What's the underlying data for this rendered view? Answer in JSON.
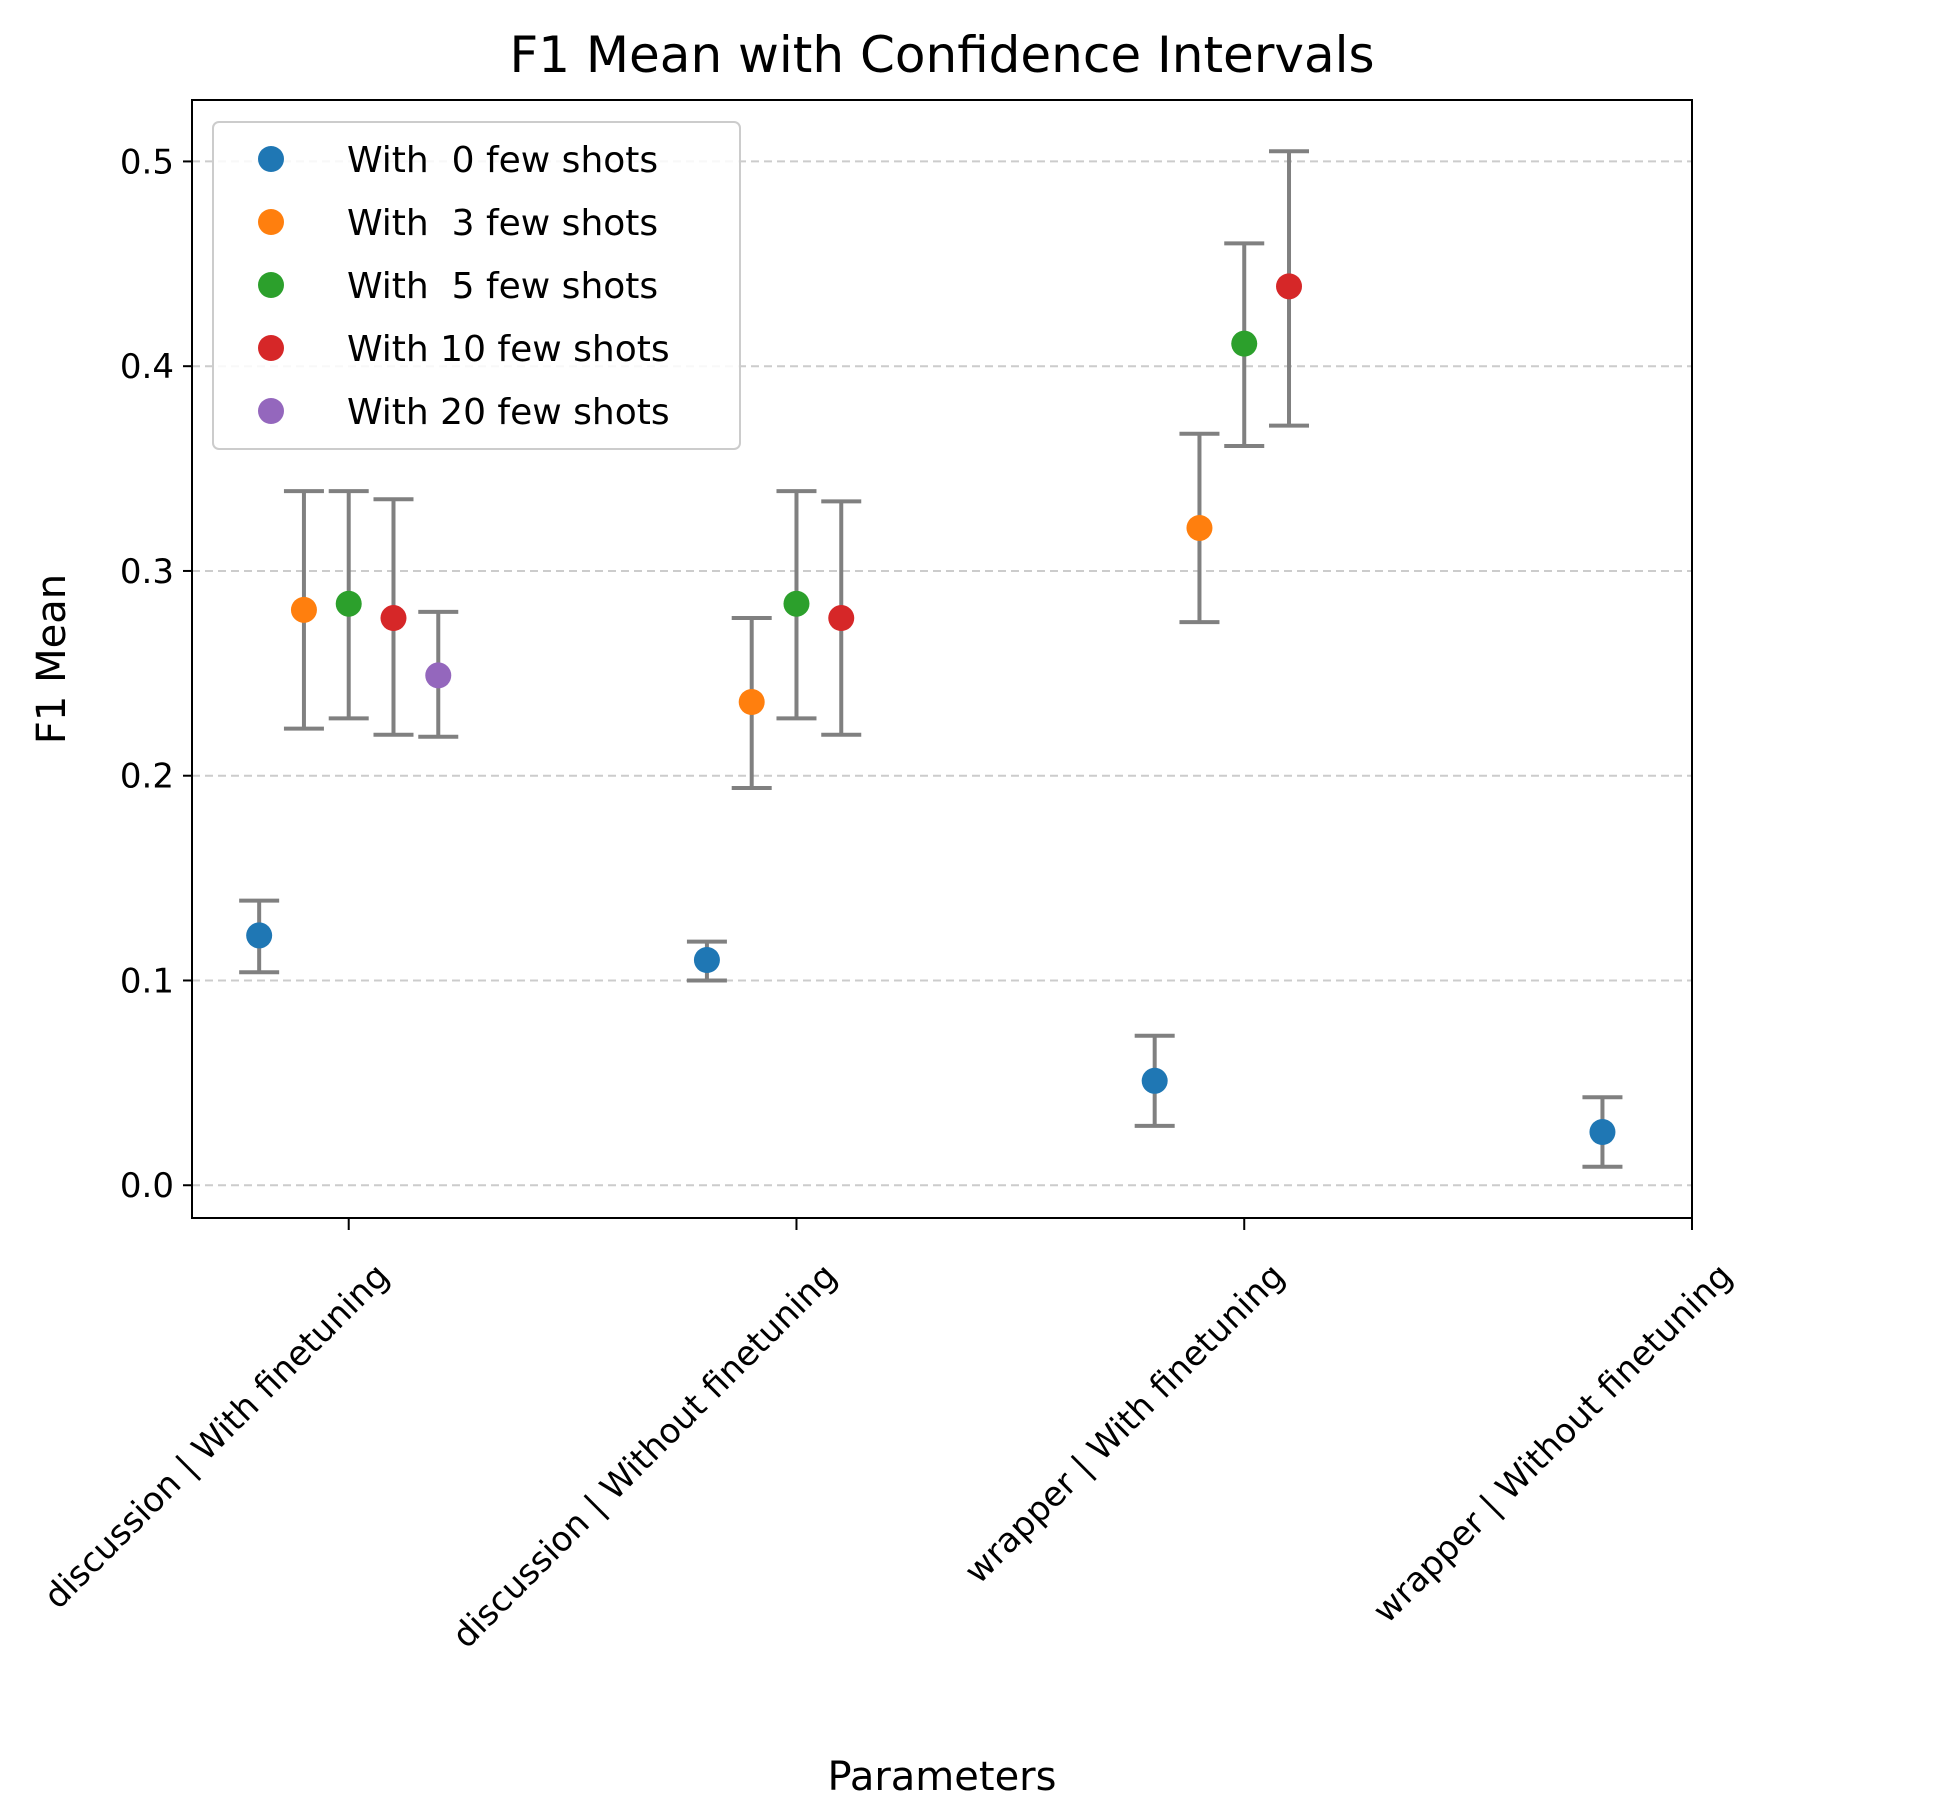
{
  "chart_data": {
    "type": "scatter",
    "title": "F1 Mean with Confidence Intervals",
    "xlabel": "Parameters",
    "ylabel": "F1 Mean",
    "categories": [
      "discussion | With finetuning",
      "discussion | Without finetuning",
      "wrapper | With finetuning",
      "wrapper | Without finetuning"
    ],
    "ylim": [
      -0.016,
      0.53
    ],
    "yticks": [
      0.0,
      0.1,
      0.2,
      0.3,
      0.4,
      0.5
    ],
    "ytick_labels": [
      "0.0",
      "0.1",
      "0.2",
      "0.3",
      "0.4",
      "0.5"
    ],
    "grid": "horizontal dashed",
    "legend_position": "upper-left",
    "error_bar_color": "#808080",
    "series": [
      {
        "name": "With  0 few shots",
        "color": "#1f77b4",
        "offset": -0.2,
        "points": [
          {
            "category": 0,
            "value": 0.122,
            "lower": 0.104,
            "upper": 0.139
          },
          {
            "category": 1,
            "value": 0.11,
            "lower": 0.1,
            "upper": 0.119
          },
          {
            "category": 2,
            "value": 0.051,
            "lower": 0.029,
            "upper": 0.073
          },
          {
            "category": 3,
            "value": 0.026,
            "lower": 0.009,
            "upper": 0.043
          }
        ]
      },
      {
        "name": "With  3 few shots",
        "color": "#ff7f0e",
        "offset": -0.1,
        "points": [
          {
            "category": 0,
            "value": 0.281,
            "lower": 0.223,
            "upper": 0.339
          },
          {
            "category": 1,
            "value": 0.236,
            "lower": 0.194,
            "upper": 0.277
          },
          {
            "category": 2,
            "value": 0.321,
            "lower": 0.275,
            "upper": 0.367
          }
        ]
      },
      {
        "name": "With  5 few shots",
        "color": "#2ca02c",
        "offset": 0.0,
        "points": [
          {
            "category": 0,
            "value": 0.284,
            "lower": 0.228,
            "upper": 0.339
          },
          {
            "category": 1,
            "value": 0.284,
            "lower": 0.228,
            "upper": 0.339
          },
          {
            "category": 2,
            "value": 0.411,
            "lower": 0.361,
            "upper": 0.46
          }
        ]
      },
      {
        "name": "With 10 few shots",
        "color": "#d62728",
        "offset": 0.1,
        "points": [
          {
            "category": 0,
            "value": 0.277,
            "lower": 0.22,
            "upper": 0.335
          },
          {
            "category": 1,
            "value": 0.277,
            "lower": 0.22,
            "upper": 0.334
          },
          {
            "category": 2,
            "value": 0.439,
            "lower": 0.371,
            "upper": 0.505
          }
        ]
      },
      {
        "name": "With 20 few shots",
        "color": "#9467bd",
        "offset": 0.2,
        "points": [
          {
            "category": 0,
            "value": 0.249,
            "lower": 0.219,
            "upper": 0.28
          }
        ]
      }
    ]
  }
}
